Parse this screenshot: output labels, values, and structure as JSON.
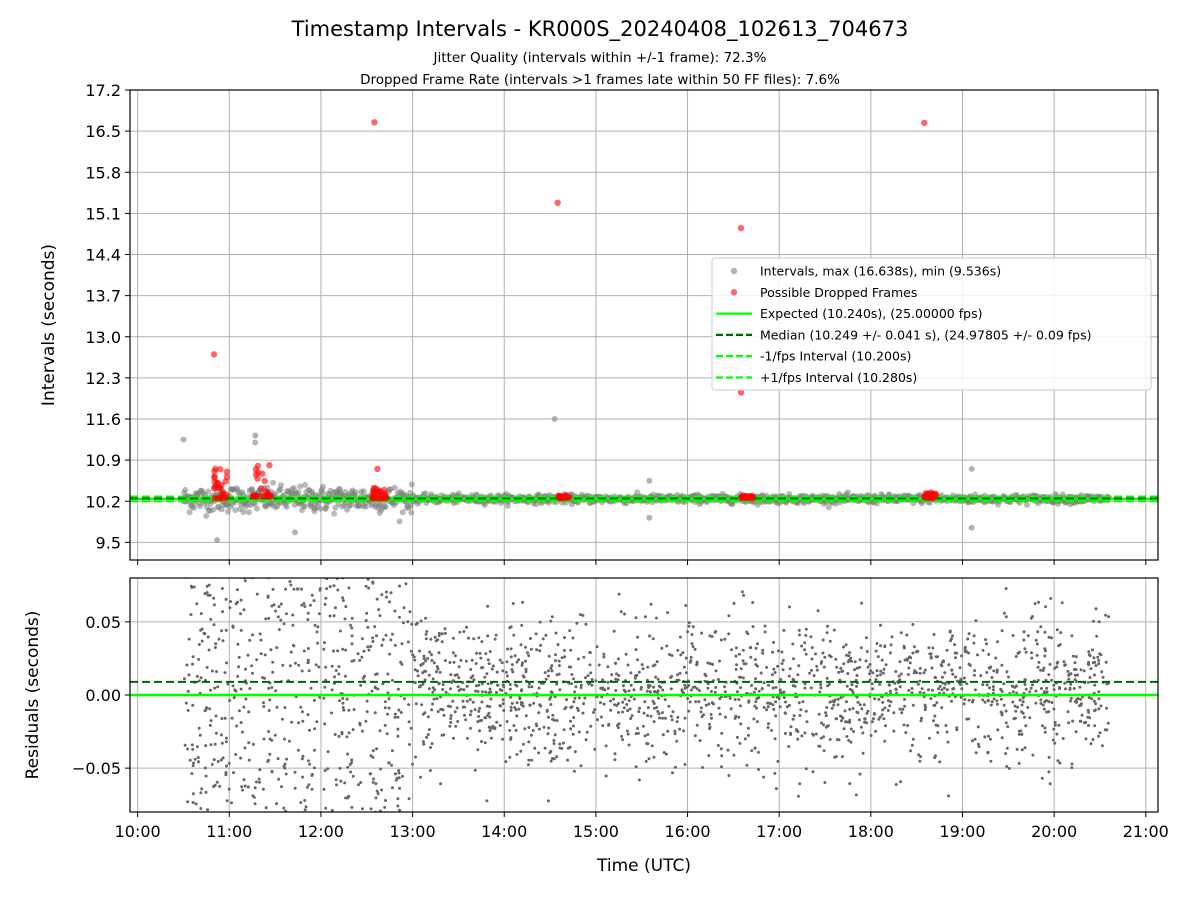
{
  "title": "Timestamp Intervals - KR000S_20240408_102613_704673",
  "subtitle_1": "Jitter Quality (intervals within +/-1 frame): 72.3%",
  "subtitle_2": "Dropped Frame Rate (intervals >1 frames late within 50 FF files): 7.6%",
  "colors": {
    "intervals": "#808080",
    "dropped": "#ff0000",
    "expected": "#00ff00",
    "median": "#006400",
    "fps_bounds": "#00ff00",
    "residuals": "#666666",
    "grid": "#b0b0b0"
  },
  "chart_data": [
    {
      "type": "scatter",
      "panel": "intervals",
      "ylabel": "Intervals (seconds)",
      "xlabel": "",
      "xlim": [
        "09:55",
        "21:08"
      ],
      "ylim": [
        9.2,
        17.2
      ],
      "x_ticks": [
        "10:00",
        "11:00",
        "12:00",
        "13:00",
        "14:00",
        "15:00",
        "16:00",
        "17:00",
        "18:00",
        "19:00",
        "20:00",
        "21:00"
      ],
      "y_ticks": [
        9.5,
        10.2,
        10.9,
        11.6,
        12.3,
        13.0,
        13.7,
        14.4,
        15.1,
        15.8,
        16.5,
        17.2
      ],
      "grid": true,
      "legend_position": "center-right",
      "legend": [
        {
          "label": "Intervals, max (16.638s), min (9.536s)",
          "marker": "circle",
          "color": "#808080"
        },
        {
          "label": "Possible Dropped Frames",
          "marker": "circle",
          "color": "#ff0000"
        },
        {
          "label": "Expected (10.240s), (25.00000 fps)",
          "marker": "solid-line",
          "color": "#00ff00"
        },
        {
          "label": "Median (10.249 +/- 0.041 s), (24.97805 +/- 0.09 fps)",
          "marker": "dashed-line",
          "color": "#006400"
        },
        {
          "label": "-1/fps Interval (10.200s)",
          "marker": "dashed-line",
          "color": "#00ff00"
        },
        {
          "label": "+1/fps Interval (10.280s)",
          "marker": "dashed-line",
          "color": "#00ff00"
        }
      ],
      "reference_lines": {
        "expected": 10.24,
        "median": 10.249,
        "minus_1_fps": 10.2,
        "plus_1_fps": 10.28
      },
      "series": [
        {
          "name": "Intervals",
          "x_range": [
            "10:30",
            "20:36"
          ],
          "center": 10.24,
          "max": 16.638,
          "min": 9.536,
          "outliers": [
            {
              "x": "10:30",
              "y": 11.25
            },
            {
              "x": "11:17",
              "y": 11.32
            },
            {
              "x": "11:17",
              "y": 11.2
            },
            {
              "x": "10:52",
              "y": 9.54
            },
            {
              "x": "11:43",
              "y": 9.67
            },
            {
              "x": "14:33",
              "y": 11.6
            },
            {
              "x": "15:35",
              "y": 10.55
            },
            {
              "x": "15:35",
              "y": 9.92
            },
            {
              "x": "19:06",
              "y": 10.75
            },
            {
              "x": "19:06",
              "y": 9.75
            }
          ]
        },
        {
          "name": "Possible Dropped Frames",
          "points": [
            {
              "x": "10:50",
              "y": 12.7
            },
            {
              "x": "12:35",
              "y": 16.65
            },
            {
              "x": "12:37",
              "y": 10.75
            },
            {
              "x": "14:35",
              "y": 15.28
            },
            {
              "x": "16:35",
              "y": 14.85
            },
            {
              "x": "16:35",
              "y": 12.05
            },
            {
              "x": "18:35",
              "y": 16.64
            }
          ],
          "clusters": [
            {
              "x_range": [
                "10:50",
                "10:59"
              ],
              "y_range": [
                10.25,
                10.85
              ]
            },
            {
              "x_range": [
                "11:15",
                "11:28"
              ],
              "y_range": [
                10.28,
                10.82
              ]
            },
            {
              "x_range": [
                "12:33",
                "12:43"
              ],
              "y_range": [
                10.25,
                10.45
              ]
            },
            {
              "x_range": [
                "14:35",
                "14:43"
              ],
              "y_range": [
                10.26,
                10.3
              ]
            },
            {
              "x_range": [
                "16:35",
                "16:43"
              ],
              "y_range": [
                10.26,
                10.3
              ]
            },
            {
              "x_range": [
                "18:35",
                "18:43"
              ],
              "y_range": [
                10.26,
                10.35
              ]
            }
          ]
        }
      ]
    },
    {
      "type": "scatter",
      "panel": "residuals",
      "ylabel": "Residuals (seconds)",
      "xlabel": "Time (UTC)",
      "xlim": [
        "09:55",
        "21:08"
      ],
      "ylim": [
        -0.08,
        0.08
      ],
      "x_ticks": [
        "10:00",
        "11:00",
        "12:00",
        "13:00",
        "14:00",
        "15:00",
        "16:00",
        "17:00",
        "18:00",
        "19:00",
        "20:00",
        "21:00"
      ],
      "y_ticks": [
        "−0.05",
        "0.00",
        "0.05"
      ],
      "y_tick_values": [
        -0.05,
        0.0,
        0.05
      ],
      "grid": true,
      "reference_lines": {
        "zero": 0.0,
        "median_offset": 0.009
      },
      "series": [
        {
          "name": "Residuals",
          "x_range": [
            "10:30",
            "20:36"
          ],
          "y_range": [
            -0.08,
            0.08
          ],
          "center": 0.0,
          "spread": "wider before 13:00, about +/-0.05 afterwards"
        }
      ]
    }
  ]
}
